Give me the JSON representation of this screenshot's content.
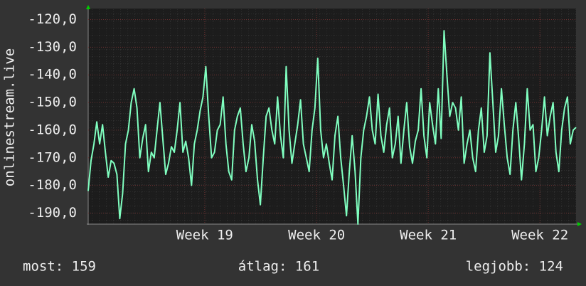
{
  "chart_data": {
    "type": "line",
    "y_label": "onlinestream.live",
    "color": "#80ffc0",
    "grid": true,
    "xlim": [
      0,
      170
    ],
    "xticks": [
      {
        "value": 40.6,
        "label": "Week 19"
      },
      {
        "value": 79.6,
        "label": "Week 20"
      },
      {
        "value": 118.5,
        "label": "Week 21"
      },
      {
        "value": 157.4,
        "label": "Week 22"
      }
    ],
    "ylim": [
      -194,
      -116
    ],
    "yticks": [
      {
        "value": -120,
        "label": "-120,0"
      },
      {
        "value": -130,
        "label": "-130,0"
      },
      {
        "value": -140,
        "label": "-140,0"
      },
      {
        "value": -150,
        "label": "-150,0"
      },
      {
        "value": -160,
        "label": "-160,0"
      },
      {
        "value": -170,
        "label": "-170,0"
      },
      {
        "value": -180,
        "label": "-180,0"
      },
      {
        "value": -190,
        "label": "-190,0"
      }
    ],
    "values": [
      -182,
      -171,
      -165,
      -157,
      -165,
      -158,
      -168,
      -177,
      -171,
      -172,
      -176,
      -192,
      -183,
      -165,
      -160,
      -150,
      -145,
      -152,
      -170,
      -163,
      -158,
      -175,
      -168,
      -170,
      -160,
      -150,
      -163,
      -176,
      -172,
      -166,
      -168,
      -160,
      -150,
      -168,
      -164,
      -170,
      -180,
      -165,
      -160,
      -153,
      -148,
      -137,
      -155,
      -170,
      -168,
      -160,
      -158,
      -148,
      -165,
      -175,
      -178,
      -160,
      -155,
      -152,
      -165,
      -175,
      -170,
      -158,
      -164,
      -178,
      -187,
      -170,
      -155,
      -152,
      -160,
      -165,
      -148,
      -162,
      -170,
      -137,
      -160,
      -172,
      -165,
      -158,
      -149,
      -165,
      -170,
      -175,
      -160,
      -152,
      -134,
      -160,
      -170,
      -165,
      -172,
      -178,
      -162,
      -155,
      -170,
      -180,
      -191,
      -175,
      -162,
      -175,
      -194,
      -170,
      -160,
      -155,
      -148,
      -160,
      -165,
      -147,
      -162,
      -168,
      -158,
      -152,
      -170,
      -165,
      -155,
      -172,
      -160,
      -150,
      -166,
      -172,
      -164,
      -160,
      -145,
      -162,
      -170,
      -150,
      -158,
      -165,
      -145,
      -163,
      -124,
      -140,
      -155,
      -150,
      -152,
      -160,
      -148,
      -172,
      -165,
      -160,
      -170,
      -175,
      -160,
      -152,
      -168,
      -162,
      -132,
      -150,
      -168,
      -162,
      -145,
      -158,
      -170,
      -176,
      -160,
      -150,
      -163,
      -178,
      -165,
      -145,
      -160,
      -158,
      -175,
      -170,
      -160,
      -148,
      -162,
      -155,
      -150,
      -168,
      -175,
      -160,
      -152,
      -148,
      -165,
      -160,
      -159
    ],
    "footer": [
      "most: 159",
      "átlag: 161",
      "legjobb: 124"
    ]
  }
}
